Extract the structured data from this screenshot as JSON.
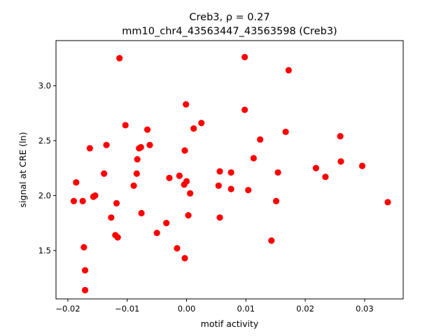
{
  "chart_data": {
    "type": "scatter",
    "title_line1": "Creb3, ρ = 0.27",
    "title_line2": "mm10_chr4_43563447_43563598 (Creb3)",
    "xlabel": "motif activity",
    "ylabel": "signal at CRE (ln)",
    "xlim": [
      -0.022,
      0.0365
    ],
    "ylim": [
      1.06,
      3.41
    ],
    "xticks": [
      -0.02,
      -0.01,
      0.0,
      0.01,
      0.02,
      0.03
    ],
    "xtick_labels": [
      "−0.02",
      "−0.01",
      "0.00",
      "0.01",
      "0.02",
      "0.03"
    ],
    "yticks": [
      1.5,
      2.0,
      2.5,
      3.0
    ],
    "ytick_labels": [
      "1.5",
      "2.0",
      "2.5",
      "3.0"
    ],
    "grid": false,
    "marker_color": "#ff0000",
    "points": [
      {
        "x": -0.0113,
        "y": 3.25
      },
      {
        "x": 0.0098,
        "y": 3.26
      },
      {
        "x": 0.0172,
        "y": 3.14
      },
      {
        "x": -0.0001,
        "y": 2.83
      },
      {
        "x": 0.0098,
        "y": 2.78
      },
      {
        "x": -0.0103,
        "y": 2.64
      },
      {
        "x": 0.0025,
        "y": 2.66
      },
      {
        "x": -0.0066,
        "y": 2.6
      },
      {
        "x": 0.0012,
        "y": 2.61
      },
      {
        "x": 0.0167,
        "y": 2.58
      },
      {
        "x": 0.0259,
        "y": 2.54
      },
      {
        "x": 0.0124,
        "y": 2.51
      },
      {
        "x": -0.0135,
        "y": 2.46
      },
      {
        "x": -0.0062,
        "y": 2.46
      },
      {
        "x": -0.0077,
        "y": 2.44
      },
      {
        "x": -0.008,
        "y": 2.43
      },
      {
        "x": -0.0163,
        "y": 2.43
      },
      {
        "x": -0.0003,
        "y": 2.41
      },
      {
        "x": 0.0113,
        "y": 2.34
      },
      {
        "x": -0.0083,
        "y": 2.33
      },
      {
        "x": 0.026,
        "y": 2.31
      },
      {
        "x": 0.0296,
        "y": 2.27
      },
      {
        "x": 0.0218,
        "y": 2.25
      },
      {
        "x": 0.0056,
        "y": 2.22
      },
      {
        "x": 0.0075,
        "y": 2.21
      },
      {
        "x": 0.0154,
        "y": 2.21
      },
      {
        "x": -0.0139,
        "y": 2.2
      },
      {
        "x": -0.0084,
        "y": 2.2
      },
      {
        "x": -0.0012,
        "y": 2.18
      },
      {
        "x": 0.0234,
        "y": 2.17
      },
      {
        "x": -0.0029,
        "y": 2.16
      },
      {
        "x": 0.0,
        "y": 2.13
      },
      {
        "x": -0.0186,
        "y": 2.12
      },
      {
        "x": -0.0004,
        "y": 2.1
      },
      {
        "x": -0.0089,
        "y": 2.09
      },
      {
        "x": 0.0054,
        "y": 2.09
      },
      {
        "x": 0.0075,
        "y": 2.06
      },
      {
        "x": 0.0104,
        "y": 2.05
      },
      {
        "x": 0.0006,
        "y": 2.02
      },
      {
        "x": -0.0154,
        "y": 2.0
      },
      {
        "x": -0.0157,
        "y": 1.99
      },
      {
        "x": -0.019,
        "y": 1.95
      },
      {
        "x": -0.0175,
        "y": 1.95
      },
      {
        "x": 0.0151,
        "y": 1.95
      },
      {
        "x": 0.0339,
        "y": 1.94
      },
      {
        "x": -0.0118,
        "y": 1.93
      },
      {
        "x": -0.0076,
        "y": 1.84
      },
      {
        "x": 0.0003,
        "y": 1.82
      },
      {
        "x": -0.0127,
        "y": 1.8
      },
      {
        "x": 0.0056,
        "y": 1.8
      },
      {
        "x": -0.0034,
        "y": 1.75
      },
      {
        "x": -0.005,
        "y": 1.66
      },
      {
        "x": -0.012,
        "y": 1.64
      },
      {
        "x": -0.0116,
        "y": 1.62
      },
      {
        "x": 0.0143,
        "y": 1.59
      },
      {
        "x": -0.0173,
        "y": 1.53
      },
      {
        "x": -0.0016,
        "y": 1.52
      },
      {
        "x": -0.0003,
        "y": 1.43
      },
      {
        "x": -0.0171,
        "y": 1.32
      },
      {
        "x": -0.0171,
        "y": 1.14
      }
    ]
  }
}
